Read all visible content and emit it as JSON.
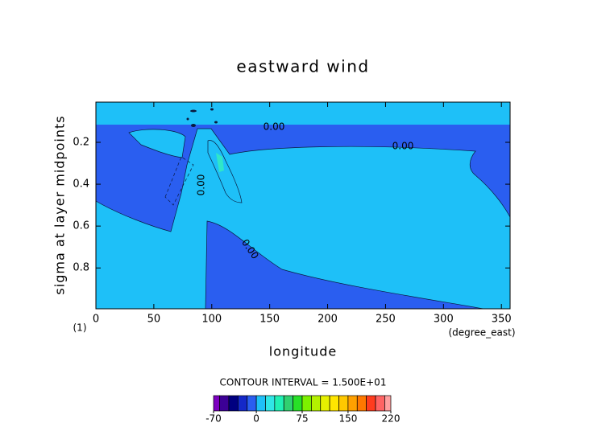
{
  "chart_data": {
    "type": "contour",
    "title": "eastward wind",
    "xlabel": "longitude",
    "ylabel": "sigma at layer midpoints",
    "xunits": "(degree_east)",
    "yunits": "(1)",
    "xlim": [
      0,
      357.5
    ],
    "ylim": [
      0.995,
      0.008
    ],
    "xticks": [
      0,
      50,
      100,
      150,
      200,
      250,
      300,
      350
    ],
    "yticks": [
      0.2,
      0.4,
      0.6,
      0.8
    ],
    "contour_interval": "CONTOUR INTERVAL = 1.500E+01",
    "contour_labels": [
      "0.00",
      "0.00",
      "0.00",
      "0.00"
    ],
    "colorbar": {
      "levels": [
        -70,
        -60,
        -45,
        -30,
        -15,
        0,
        15,
        30,
        45,
        60,
        75,
        90,
        105,
        120,
        135,
        150,
        165,
        180,
        195,
        210,
        220
      ],
      "colors": [
        "#7d00c0",
        "#3c0096",
        "#000080",
        "#1428c8",
        "#2a5ef0",
        "#1ec0f8",
        "#30e6e6",
        "#20f0b4",
        "#30d070",
        "#28e028",
        "#7cf000",
        "#b4f000",
        "#e6f000",
        "#ffe600",
        "#ffc800",
        "#ffa000",
        "#ff7800",
        "#ff3c1e",
        "#ff6464",
        "#ffa0a0"
      ],
      "ticks": [
        -70,
        0,
        75,
        150,
        220
      ]
    }
  }
}
